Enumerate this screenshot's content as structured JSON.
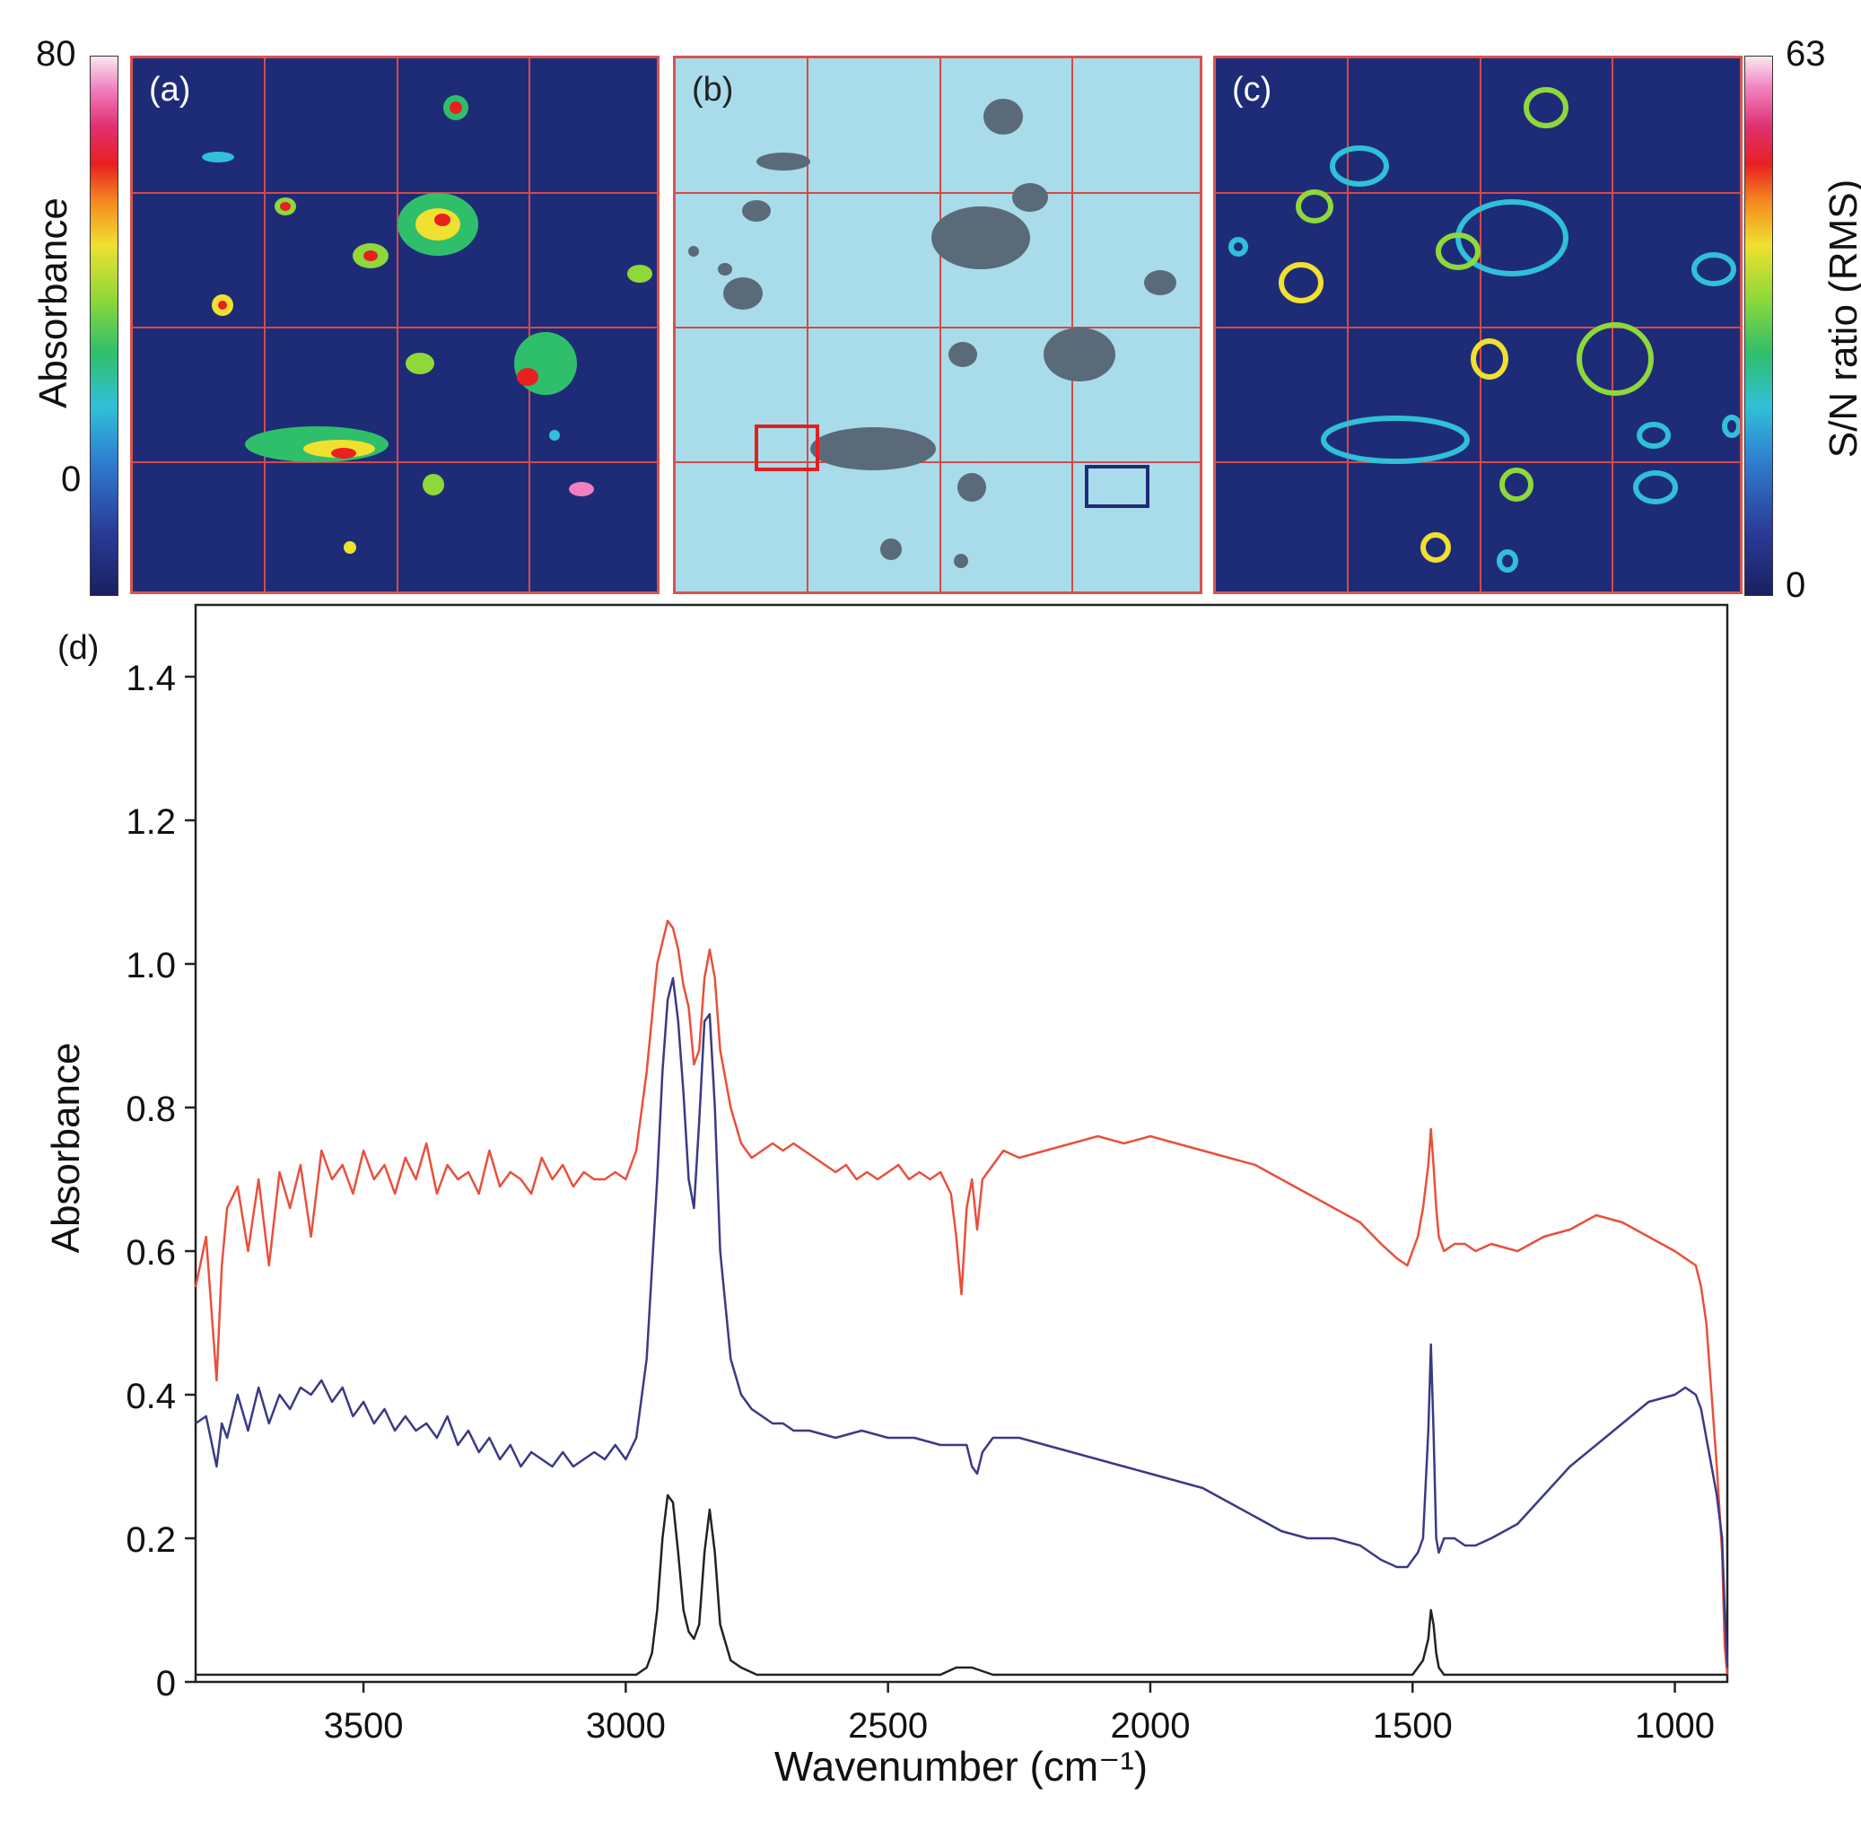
{
  "colorbar_left": {
    "label": "Absorbance",
    "max_label": "80",
    "min_label": "0"
  },
  "colorbar_right": {
    "label": "S/N ratio (RMS)",
    "max_label": "63",
    "min_label": "0"
  },
  "panels": [
    {
      "label": "(a)",
      "background": "#1e2c78"
    },
    {
      "label": "(b)",
      "background": "#a8dcea"
    },
    {
      "label": "(c)",
      "background": "#1e2c78"
    }
  ],
  "panel_d_label": "(d)",
  "chart_data": {
    "type": "line",
    "xlabel": "Wavenumber (cm⁻¹)",
    "ylabel": "Absorbance",
    "xlim": [
      3820,
      900
    ],
    "ylim": [
      0,
      1.5
    ],
    "xticks": [
      "3500",
      "3000",
      "2500",
      "2000",
      "1500",
      "1000"
    ],
    "xtick_values": [
      3500,
      3000,
      2500,
      2000,
      1500,
      1000
    ],
    "yticks": [
      "0",
      "0.2",
      "0.4",
      "0.6",
      "0.8",
      "1.0",
      "1.2",
      "1.4"
    ],
    "ytick_values": [
      0,
      0.2,
      0.4,
      0.6,
      0.8,
      1.0,
      1.2,
      1.4
    ],
    "series": [
      {
        "name": "red",
        "color": "#e8503c",
        "x": [
          3820,
          3800,
          3780,
          3770,
          3760,
          3740,
          3720,
          3700,
          3680,
          3660,
          3640,
          3620,
          3600,
          3580,
          3560,
          3540,
          3520,
          3500,
          3480,
          3460,
          3440,
          3420,
          3400,
          3380,
          3360,
          3340,
          3320,
          3300,
          3280,
          3260,
          3240,
          3220,
          3200,
          3180,
          3160,
          3140,
          3120,
          3100,
          3080,
          3060,
          3040,
          3020,
          3000,
          2980,
          2960,
          2940,
          2920,
          2910,
          2900,
          2890,
          2880,
          2870,
          2860,
          2850,
          2840,
          2830,
          2820,
          2800,
          2780,
          2760,
          2740,
          2720,
          2700,
          2680,
          2660,
          2640,
          2620,
          2600,
          2580,
          2560,
          2540,
          2520,
          2500,
          2480,
          2460,
          2440,
          2420,
          2400,
          2380,
          2370,
          2360,
          2350,
          2340,
          2330,
          2320,
          2300,
          2280,
          2250,
          2200,
          2150,
          2100,
          2050,
          2000,
          1950,
          1900,
          1850,
          1800,
          1750,
          1700,
          1650,
          1600,
          1560,
          1530,
          1510,
          1500,
          1490,
          1480,
          1470,
          1465,
          1460,
          1455,
          1450,
          1440,
          1420,
          1400,
          1380,
          1350,
          1300,
          1250,
          1200,
          1150,
          1100,
          1050,
          1000,
          980,
          960,
          950,
          940,
          930,
          920,
          910,
          905,
          900
        ],
        "y": [
          0.55,
          0.62,
          0.42,
          0.58,
          0.66,
          0.69,
          0.6,
          0.7,
          0.58,
          0.71,
          0.66,
          0.72,
          0.62,
          0.74,
          0.7,
          0.72,
          0.68,
          0.74,
          0.7,
          0.72,
          0.68,
          0.73,
          0.7,
          0.75,
          0.68,
          0.72,
          0.7,
          0.71,
          0.68,
          0.74,
          0.69,
          0.71,
          0.7,
          0.68,
          0.73,
          0.7,
          0.72,
          0.69,
          0.71,
          0.7,
          0.7,
          0.71,
          0.7,
          0.74,
          0.85,
          1.0,
          1.06,
          1.05,
          1.02,
          0.97,
          0.94,
          0.86,
          0.88,
          0.98,
          1.02,
          0.98,
          0.88,
          0.8,
          0.75,
          0.73,
          0.74,
          0.75,
          0.74,
          0.75,
          0.74,
          0.73,
          0.72,
          0.71,
          0.72,
          0.7,
          0.71,
          0.7,
          0.71,
          0.72,
          0.7,
          0.71,
          0.7,
          0.71,
          0.68,
          0.62,
          0.54,
          0.66,
          0.7,
          0.63,
          0.7,
          0.72,
          0.74,
          0.73,
          0.74,
          0.75,
          0.76,
          0.75,
          0.76,
          0.75,
          0.74,
          0.73,
          0.72,
          0.7,
          0.68,
          0.66,
          0.64,
          0.61,
          0.59,
          0.58,
          0.6,
          0.62,
          0.66,
          0.72,
          0.77,
          0.72,
          0.66,
          0.62,
          0.6,
          0.61,
          0.61,
          0.6,
          0.61,
          0.6,
          0.62,
          0.63,
          0.65,
          0.64,
          0.62,
          0.6,
          0.59,
          0.58,
          0.55,
          0.5,
          0.4,
          0.3,
          0.18,
          0.05,
          0.01
        ]
      },
      {
        "name": "blue",
        "color": "#3a3a86",
        "x": [
          3820,
          3800,
          3780,
          3770,
          3760,
          3740,
          3720,
          3700,
          3680,
          3660,
          3640,
          3620,
          3600,
          3580,
          3560,
          3540,
          3520,
          3500,
          3480,
          3460,
          3440,
          3420,
          3400,
          3380,
          3360,
          3340,
          3320,
          3300,
          3280,
          3260,
          3240,
          3220,
          3200,
          3180,
          3160,
          3140,
          3120,
          3100,
          3080,
          3060,
          3040,
          3020,
          3000,
          2980,
          2960,
          2940,
          2930,
          2920,
          2910,
          2900,
          2890,
          2880,
          2870,
          2860,
          2850,
          2840,
          2830,
          2820,
          2800,
          2780,
          2760,
          2740,
          2720,
          2700,
          2680,
          2650,
          2600,
          2550,
          2500,
          2450,
          2400,
          2350,
          2340,
          2330,
          2320,
          2300,
          2250,
          2200,
          2150,
          2100,
          2050,
          2000,
          1950,
          1900,
          1850,
          1800,
          1750,
          1700,
          1650,
          1600,
          1560,
          1530,
          1510,
          1500,
          1490,
          1480,
          1470,
          1465,
          1460,
          1455,
          1450,
          1440,
          1420,
          1400,
          1380,
          1350,
          1300,
          1250,
          1200,
          1150,
          1100,
          1050,
          1000,
          980,
          960,
          950,
          940,
          930,
          920,
          910,
          905,
          900
        ],
        "y": [
          0.36,
          0.37,
          0.3,
          0.36,
          0.34,
          0.4,
          0.35,
          0.41,
          0.36,
          0.4,
          0.38,
          0.41,
          0.4,
          0.42,
          0.39,
          0.41,
          0.37,
          0.39,
          0.36,
          0.38,
          0.35,
          0.37,
          0.35,
          0.36,
          0.34,
          0.37,
          0.33,
          0.35,
          0.32,
          0.34,
          0.31,
          0.33,
          0.3,
          0.32,
          0.31,
          0.3,
          0.32,
          0.3,
          0.31,
          0.32,
          0.31,
          0.33,
          0.31,
          0.34,
          0.45,
          0.7,
          0.85,
          0.95,
          0.98,
          0.92,
          0.82,
          0.7,
          0.66,
          0.78,
          0.92,
          0.93,
          0.8,
          0.6,
          0.45,
          0.4,
          0.38,
          0.37,
          0.36,
          0.36,
          0.35,
          0.35,
          0.34,
          0.35,
          0.34,
          0.34,
          0.33,
          0.33,
          0.3,
          0.29,
          0.32,
          0.34,
          0.34,
          0.33,
          0.32,
          0.31,
          0.3,
          0.29,
          0.28,
          0.27,
          0.25,
          0.23,
          0.21,
          0.2,
          0.2,
          0.19,
          0.17,
          0.16,
          0.16,
          0.17,
          0.18,
          0.2,
          0.35,
          0.47,
          0.35,
          0.2,
          0.18,
          0.2,
          0.2,
          0.19,
          0.19,
          0.2,
          0.22,
          0.26,
          0.3,
          0.33,
          0.36,
          0.39,
          0.4,
          0.41,
          0.4,
          0.38,
          0.34,
          0.3,
          0.26,
          0.2,
          0.1,
          0.02
        ]
      },
      {
        "name": "black",
        "color": "#222222",
        "x": [
          3820,
          3600,
          3300,
          3100,
          3000,
          2980,
          2960,
          2950,
          2940,
          2930,
          2920,
          2910,
          2900,
          2890,
          2880,
          2870,
          2860,
          2850,
          2840,
          2830,
          2820,
          2800,
          2780,
          2750,
          2700,
          2600,
          2500,
          2400,
          2370,
          2340,
          2300,
          2200,
          2000,
          1800,
          1600,
          1520,
          1500,
          1490,
          1480,
          1470,
          1465,
          1460,
          1455,
          1450,
          1440,
          1420,
          1400,
          1300,
          1100,
          1000,
          900
        ],
        "y": [
          0.01,
          0.01,
          0.01,
          0.01,
          0.01,
          0.01,
          0.02,
          0.04,
          0.1,
          0.2,
          0.26,
          0.25,
          0.18,
          0.1,
          0.07,
          0.06,
          0.08,
          0.18,
          0.24,
          0.18,
          0.08,
          0.03,
          0.02,
          0.01,
          0.01,
          0.01,
          0.01,
          0.01,
          0.02,
          0.02,
          0.01,
          0.01,
          0.01,
          0.01,
          0.01,
          0.01,
          0.01,
          0.02,
          0.03,
          0.06,
          0.1,
          0.08,
          0.04,
          0.02,
          0.01,
          0.01,
          0.01,
          0.01,
          0.01,
          0.01,
          0.01
        ]
      }
    ]
  }
}
